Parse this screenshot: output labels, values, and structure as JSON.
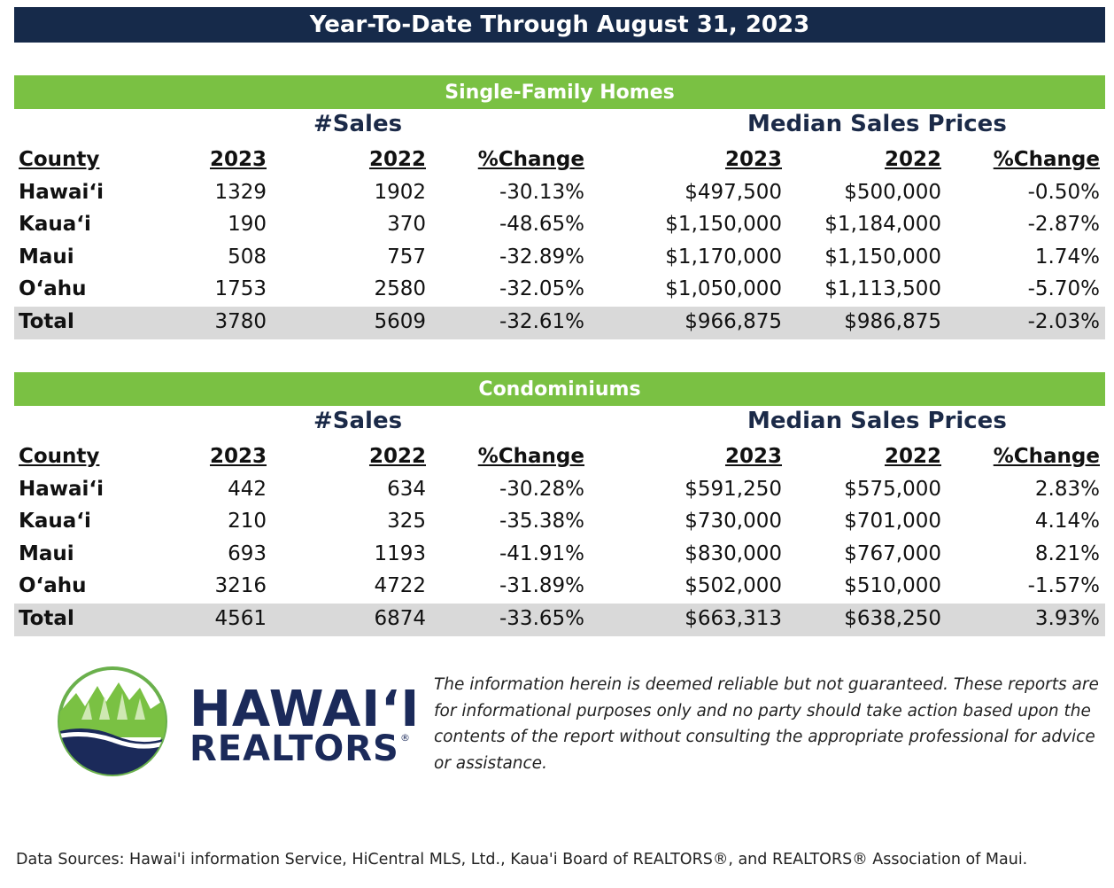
{
  "title": "Year-To-Date Through August 31, 2023",
  "groups": {
    "sales": "#Sales",
    "prices": "Median Sales Prices"
  },
  "headers": [
    "County",
    "2023",
    "2022",
    "%Change",
    "2023",
    "2022",
    "%Change"
  ],
  "single_family": {
    "title": "Single-Family Homes",
    "rows": [
      [
        "Hawai‘i",
        "1329",
        "1902",
        "-30.13%",
        "$497,500",
        "$500,000",
        "-0.50%"
      ],
      [
        "Kaua‘i",
        "190",
        "370",
        "-48.65%",
        "$1,150,000",
        "$1,184,000",
        "-2.87%"
      ],
      [
        "Maui",
        "508",
        "757",
        "-32.89%",
        "$1,170,000",
        "$1,150,000",
        "1.74%"
      ],
      [
        "O‘ahu",
        "1753",
        "2580",
        "-32.05%",
        "$1,050,000",
        "$1,113,500",
        "-5.70%"
      ],
      [
        "Total",
        "3780",
        "5609",
        "-32.61%",
        "$966,875",
        "$986,875",
        "-2.03%"
      ]
    ]
  },
  "condominiums": {
    "title": "Condominiums",
    "rows": [
      [
        "Hawai‘i",
        "442",
        "634",
        "-30.28%",
        "$591,250",
        "$575,000",
        "2.83%"
      ],
      [
        "Kaua‘i",
        "210",
        "325",
        "-35.38%",
        "$730,000",
        "$701,000",
        "4.14%"
      ],
      [
        "Maui",
        "693",
        "1193",
        "-41.91%",
        "$830,000",
        "$767,000",
        "8.21%"
      ],
      [
        "O‘ahu",
        "3216",
        "4722",
        "-31.89%",
        "$502,000",
        "$510,000",
        "-1.57%"
      ],
      [
        "Total",
        "4561",
        "6874",
        "-33.65%",
        "$663,313",
        "$638,250",
        "3.93%"
      ]
    ]
  },
  "logo": {
    "line1": "HAWAI‘I",
    "line2": "REALTORS",
    "mark": "®"
  },
  "disclaimer": "The information herein is deemed reliable but not guaranteed. These reports are for informational purposes only and no party should take action based upon the contents of the report without consulting the appropriate professional for advice or assistance.",
  "footer": "Data Sources: Hawai'i information Service, HiCentral MLS, Ltd., Kaua'i Board of REALTORS®, and REALTORS® Association of Maui.",
  "colors": {
    "navy": "#162a4a",
    "green": "#7ac143",
    "total_row": "#d9d9d9"
  }
}
